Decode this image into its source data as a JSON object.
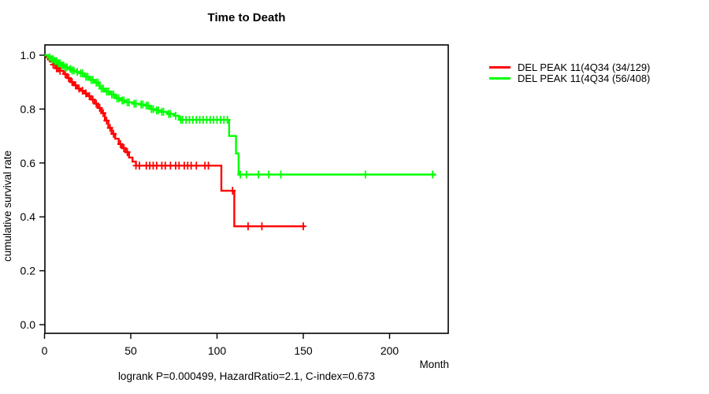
{
  "title": "Time to Death",
  "axes": {
    "x_label": "Month",
    "y_label": "cumulative survival rate"
  },
  "footer_stats": "logrank P=0.000499, HazardRatio=2.1, C-index=0.673",
  "legend": {
    "items": [
      {
        "label": "DEL PEAK 11(4Q34 (34/129)",
        "color": "#ff0000"
      },
      {
        "label": "DEL PEAK 11(4Q34 (56/408)",
        "color": "#00ff00"
      }
    ]
  },
  "chart_data": {
    "type": "line",
    "subtype": "kaplan-meier-step",
    "title": "Time to Death",
    "xlabel": "Month",
    "ylabel": "cumulative survival rate",
    "xlim": [
      0,
      234
    ],
    "ylim": [
      0.0,
      1.0
    ],
    "xticks": [
      0,
      50,
      100,
      150,
      200
    ],
    "yticks": [
      "0.0",
      "0.2",
      "0.4",
      "0.6",
      "0.8",
      "1.0"
    ],
    "grid": false,
    "legend_position": "right-outside",
    "stats_annotation": "logrank P=0.000499, HazardRatio=2.1, C-index=0.673",
    "series": [
      {
        "name": "DEL PEAK 11(4Q34 (34/129)",
        "color": "#ff0000",
        "steps": [
          [
            0,
            1.0
          ],
          [
            1,
            0.992
          ],
          [
            2,
            0.984
          ],
          [
            3,
            0.977
          ],
          [
            5,
            0.965
          ],
          [
            7,
            0.951
          ],
          [
            9,
            0.942
          ],
          [
            11,
            0.93
          ],
          [
            13,
            0.915
          ],
          [
            15,
            0.9
          ],
          [
            17,
            0.888
          ],
          [
            19,
            0.876
          ],
          [
            21,
            0.868
          ],
          [
            23,
            0.858
          ],
          [
            25,
            0.848
          ],
          [
            27,
            0.835
          ],
          [
            29,
            0.82
          ],
          [
            31,
            0.804
          ],
          [
            33,
            0.785
          ],
          [
            35,
            0.757
          ],
          [
            37,
            0.73
          ],
          [
            39,
            0.708
          ],
          [
            41,
            0.69
          ],
          [
            43,
            0.67
          ],
          [
            45,
            0.655
          ],
          [
            47,
            0.64
          ],
          [
            49,
            0.62
          ],
          [
            51,
            0.605
          ],
          [
            53,
            0.59
          ],
          [
            102.5,
            0.497
          ],
          [
            110,
            0.365
          ],
          [
            151,
            0.365
          ]
        ],
        "censor_months": [
          5,
          6,
          7,
          8,
          9,
          12,
          14,
          16,
          18,
          20,
          22,
          24,
          26,
          28,
          30,
          32,
          34,
          36,
          38,
          40,
          44,
          46,
          48,
          53,
          55,
          59,
          61,
          63,
          65,
          68,
          70,
          73,
          76,
          78,
          81,
          83,
          85,
          88,
          93,
          95,
          109,
          118,
          126,
          150
        ]
      },
      {
        "name": "DEL PEAK 11(4Q34 (56/408)",
        "color": "#00ff00",
        "steps": [
          [
            0,
            1.0
          ],
          [
            2,
            0.992
          ],
          [
            4,
            0.985
          ],
          [
            6,
            0.978
          ],
          [
            8,
            0.97
          ],
          [
            10,
            0.962
          ],
          [
            12,
            0.955
          ],
          [
            14,
            0.949
          ],
          [
            16,
            0.943
          ],
          [
            18,
            0.938
          ],
          [
            20,
            0.933
          ],
          [
            23,
            0.92
          ],
          [
            26,
            0.908
          ],
          [
            29,
            0.898
          ],
          [
            32,
            0.876
          ],
          [
            35,
            0.865
          ],
          [
            38,
            0.854
          ],
          [
            41,
            0.84
          ],
          [
            44,
            0.832
          ],
          [
            47,
            0.825
          ],
          [
            51,
            0.82
          ],
          [
            55,
            0.817
          ],
          [
            58,
            0.813
          ],
          [
            61,
            0.8
          ],
          [
            64,
            0.795
          ],
          [
            67,
            0.79
          ],
          [
            71,
            0.782
          ],
          [
            75,
            0.775
          ],
          [
            78,
            0.76
          ],
          [
            107,
            0.7
          ],
          [
            111,
            0.635
          ],
          [
            112.5,
            0.557
          ],
          [
            227,
            0.557
          ]
        ],
        "censor_months": [
          3,
          4,
          5,
          6,
          7,
          8,
          9,
          10,
          11,
          12,
          13,
          15,
          16,
          17,
          19,
          21,
          22,
          24,
          25,
          27,
          28,
          30,
          31,
          33,
          34,
          36,
          37,
          39,
          40,
          42,
          43,
          45,
          46,
          48,
          49,
          52,
          53,
          56,
          57,
          59,
          60,
          62,
          63,
          65,
          66,
          68,
          69,
          72,
          73,
          76,
          79,
          80,
          82,
          84,
          86,
          88,
          90,
          92,
          94,
          96,
          98,
          100,
          102,
          104,
          106,
          113.5,
          117,
          124,
          130,
          137,
          186,
          225
        ]
      }
    ]
  }
}
